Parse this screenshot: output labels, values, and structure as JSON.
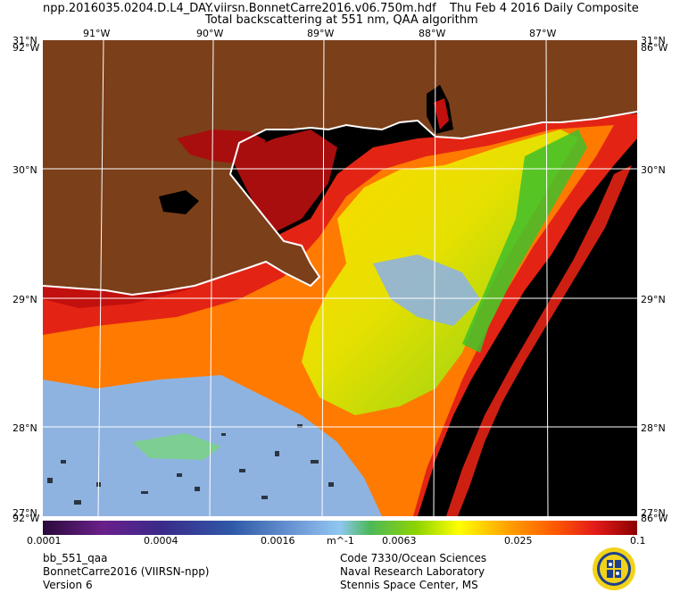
{
  "header": {
    "filename": "npp.2016035.0204.D.L4_DAY.viirsn.BonnetCarre2016.v06.750m.hdf",
    "date": "Thu Feb  4 2016 Daily Composite",
    "subtitle": "Total backscattering at 551 nm, QAA algorithm"
  },
  "map": {
    "longitudes": [
      "91°W",
      "90°W",
      "89°W",
      "88°W",
      "87°W"
    ],
    "latitudes": [
      "31°N",
      "30°N",
      "29°N",
      "28°N"
    ],
    "corner_labels": {
      "top_left_a": "31°N",
      "top_left_b": "92°W",
      "top_right_a": "31°N",
      "top_right_b": "86°W",
      "bottom_left_a": "27°N",
      "bottom_left_b": "92°W",
      "bottom_right_a": "27°N",
      "bottom_right_b": "86°W"
    },
    "colors": {
      "land": "#7b3f1a",
      "no_data": "#000000",
      "graticule": "#ffffff"
    }
  },
  "colorbar": {
    "ticks": [
      "0.0001",
      "0.0004",
      "0.0016",
      "0.0063",
      "0.025",
      "0.1"
    ],
    "unit": "m^-1",
    "scale": "log",
    "range": [
      0.0001,
      0.1
    ]
  },
  "footer": {
    "left": [
      "bb_551_qaa",
      "BonnetCarre2016 (VIIRSN-npp)",
      "Version 6"
    ],
    "right": [
      "Code 7330/Ocean Sciences",
      "Naval Research Laboratory",
      "Stennis Space Center, MS"
    ]
  },
  "logo": {
    "name": "naval-research-laboratory-seal"
  }
}
